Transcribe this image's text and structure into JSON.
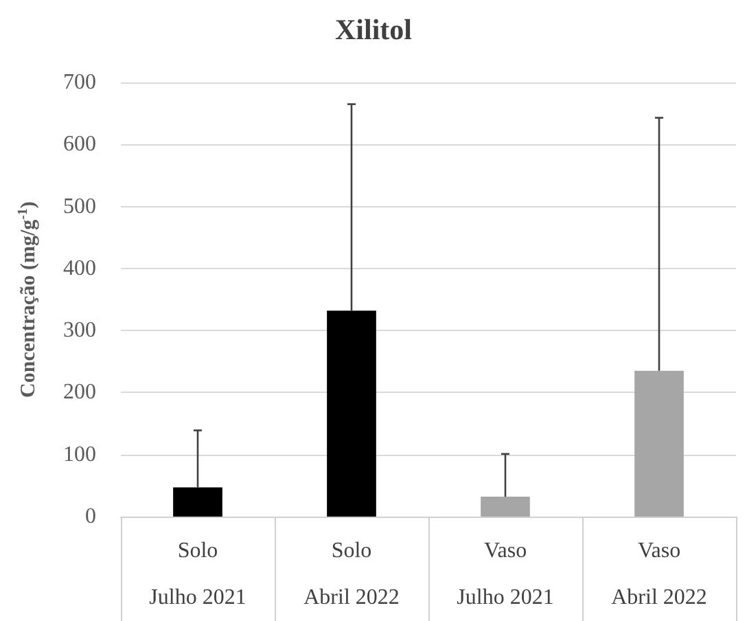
{
  "chart_data": {
    "type": "bar",
    "title": "Xilitol",
    "ylabel": "Concentração (mg/g$^{-1}$)",
    "categories": [
      "Solo\nJulho 2021",
      "Solo\nAbril 2022",
      "Vaso\nJulho 2021",
      "Vaso\nAbril 2022"
    ],
    "values": [
      47,
      332,
      32,
      235
    ],
    "colors": [
      "#000000",
      "#000000",
      "#a6a6a6",
      "#a6a6a6"
    ],
    "errors": [
      [
        47,
        139
      ],
      [
        332,
        665
      ],
      [
        32,
        101
      ],
      [
        235,
        643
      ]
    ],
    "ylim": [
      0,
      700
    ],
    "yticks": [
      0,
      100,
      200,
      300,
      400,
      500,
      600,
      700
    ],
    "grid": "y"
  }
}
